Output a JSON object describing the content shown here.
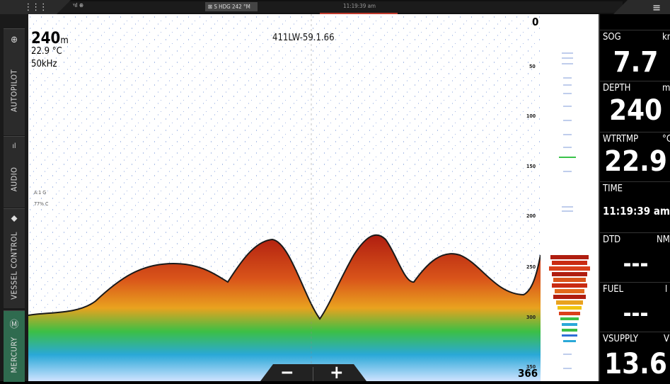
{
  "topbar": {
    "apps_icon": "grid-icon",
    "menu_icon": "hamburger-icon",
    "signal_text": "ᵞıl ⊕",
    "heading_text": "⊠ S HDG 242 °M",
    "clock": "11:19:39 am"
  },
  "sidebar": {
    "items": [
      {
        "label": "AUTOPILOT",
        "icon": "autopilot-icon",
        "glyph": "⊕"
      },
      {
        "label": "AUDIO",
        "icon": "audio-icon",
        "glyph": "ıl"
      },
      {
        "label": "VESSEL CONTROL",
        "icon": "vessel-icon",
        "glyph": "⬥"
      },
      {
        "label": "MERCURY",
        "icon": "mercury-logo-icon",
        "glyph": "Ⓜ"
      }
    ]
  },
  "sonar": {
    "depth_value": "240",
    "depth_unit": "m",
    "water_temp": "22.9 °C",
    "frequency": "50kHz",
    "source_label": "411LW-59.1.66",
    "range_top": "0",
    "range_bottom": "366",
    "depth_ticks": [
      "50",
      "100",
      "150",
      "200",
      "250",
      "300",
      "350"
    ],
    "gain_labels": [
      "A:1 G",
      "77% C"
    ]
  },
  "zoom": {
    "minus": "−",
    "plus": "+"
  },
  "instruments": [
    {
      "label": "SOG",
      "unit": "kn",
      "value": "7.7"
    },
    {
      "label": "DEPTH",
      "unit": "m",
      "value": "240"
    },
    {
      "label": "WTRTMP",
      "unit": "°C",
      "value": "22.9"
    },
    {
      "label": "TIME",
      "unit": "",
      "value": "11:19:39 am"
    },
    {
      "label": "DTD",
      "unit": "NM",
      "value": "---"
    },
    {
      "label": "FUEL",
      "unit": "l",
      "value": "---"
    },
    {
      "label": "VSUPPLY",
      "unit": "V",
      "value": "13.6"
    }
  ],
  "colors": {
    "sonar_bg": "#ffffff",
    "sonar_red": "#c0392b",
    "sonar_yellow": "#f1c40f",
    "sonar_green": "#2ecc71",
    "sonar_blue": "#2e6fd6"
  }
}
